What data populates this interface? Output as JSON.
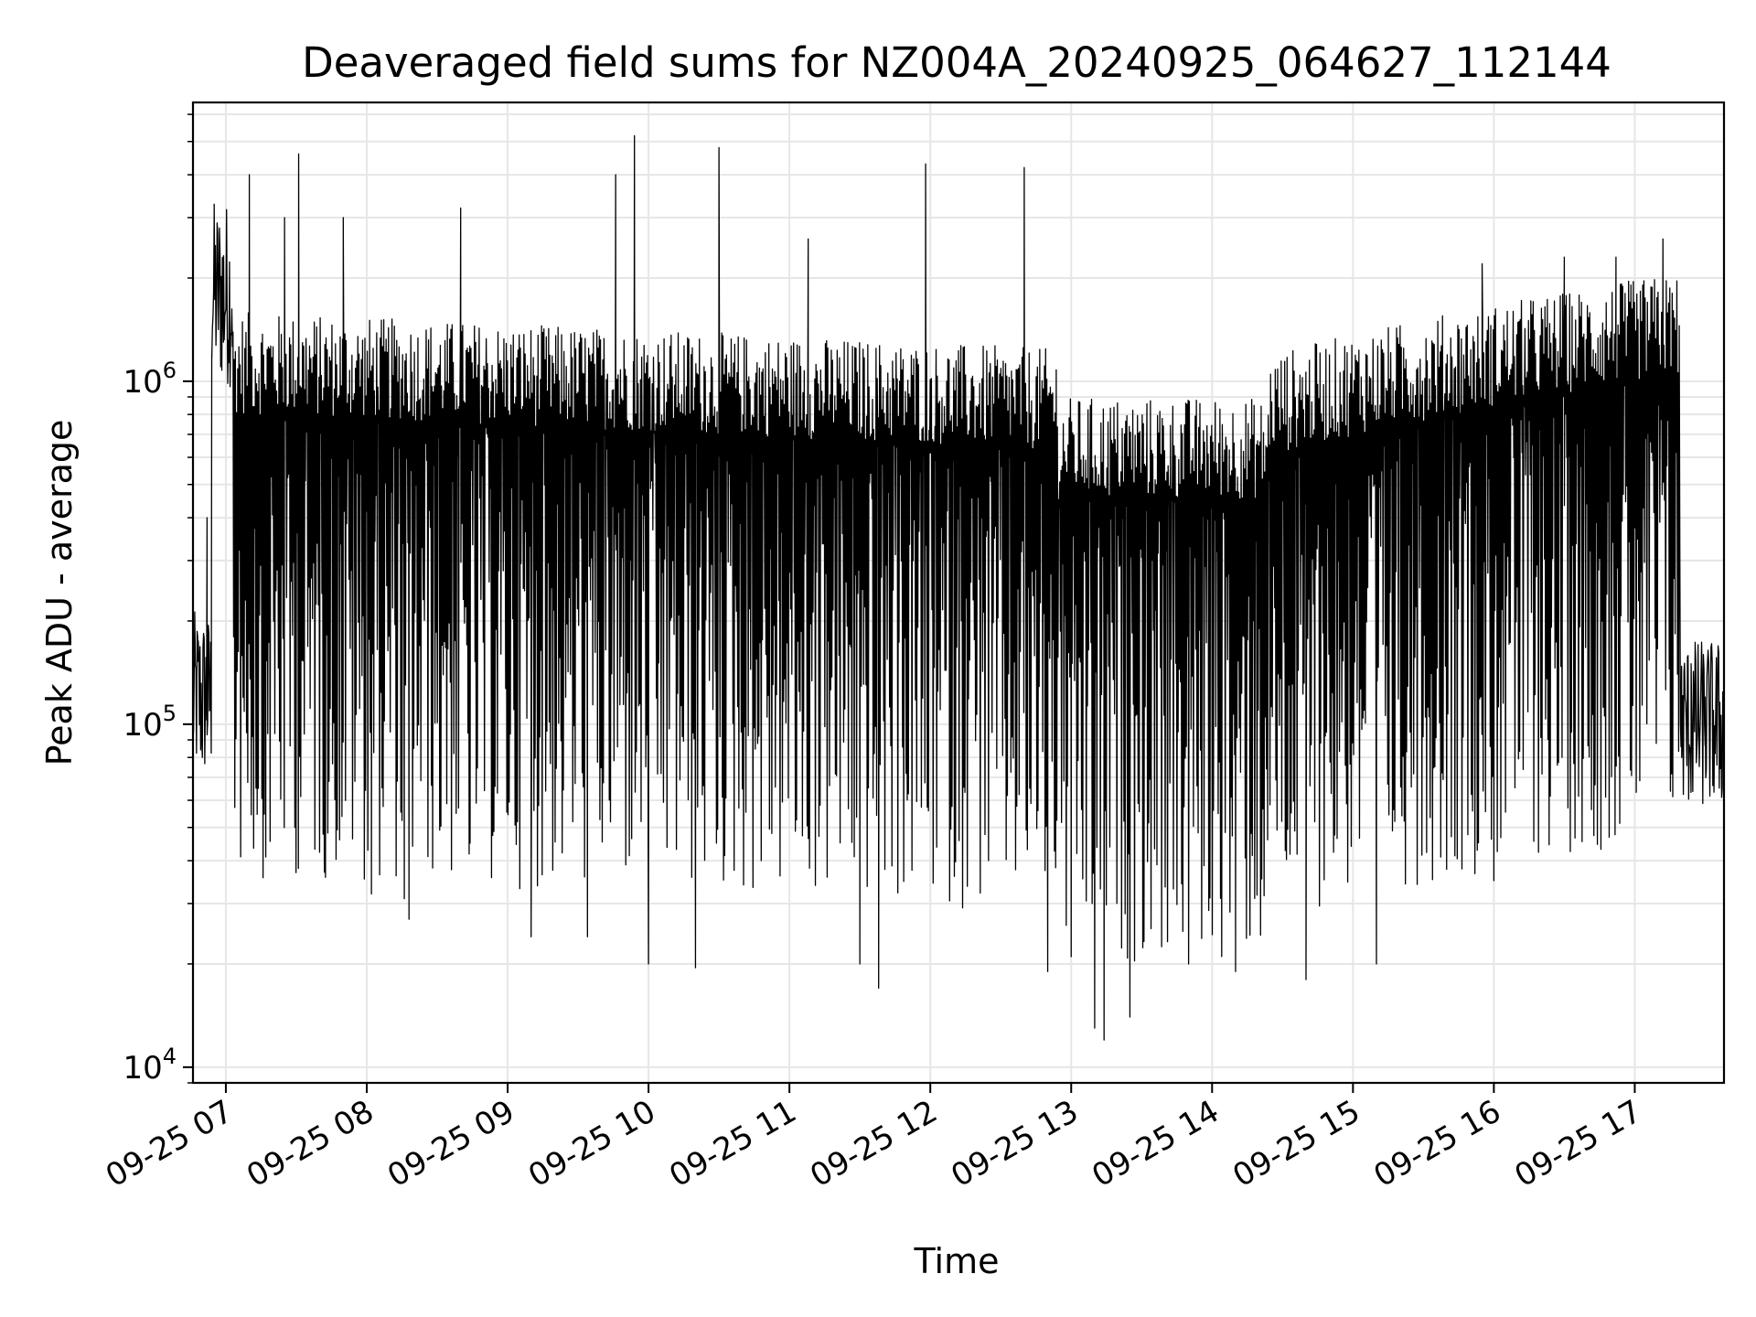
{
  "chart_data": {
    "type": "line",
    "title": "Deaveraged field sums for NZ004A_20240925_064627_112144",
    "xlabel": "Time",
    "ylabel": "Peak ADU - average",
    "yscale": "log",
    "ylim": [
      9000,
      6500000
    ],
    "xlim": [
      "09-25 06:46",
      "09-25 17:38"
    ],
    "grid": true,
    "line_color": "#000000",
    "x_ticks": [
      "09-25 07",
      "09-25 08",
      "09-25 09",
      "09-25 10",
      "09-25 11",
      "09-25 12",
      "09-25 13",
      "09-25 14",
      "09-25 15",
      "09-25 16",
      "09-25 17"
    ],
    "y_ticks": [
      {
        "base": "10",
        "exp": "4",
        "value": 10000
      },
      {
        "base": "10",
        "exp": "5",
        "value": 100000
      },
      {
        "base": "10",
        "exp": "6",
        "value": 1000000
      }
    ],
    "series": [
      {
        "points": [
          [
            "09-25 06:46",
            90000
          ],
          [
            "09-25 06:48",
            180000
          ],
          [
            "09-25 06:50",
            80000
          ],
          [
            "09-25 06:52",
            400000
          ],
          [
            "09-25 06:54",
            1200000
          ],
          [
            "09-25 06:55",
            2900000
          ],
          [
            "09-25 06:57",
            1800000
          ],
          [
            "09-25 06:59",
            1300000
          ],
          [
            "09-25 07:10",
            4000000
          ],
          [
            "09-25 07:17",
            41000
          ],
          [
            "09-25 07:25",
            3000000
          ],
          [
            "09-25 07:31",
            4600000
          ],
          [
            "09-25 07:42",
            37000
          ],
          [
            "09-25 07:50",
            3000000
          ],
          [
            "09-25 08:02",
            32000
          ],
          [
            "09-25 08:16",
            31000
          ],
          [
            "09-25 08:18",
            27000
          ],
          [
            "09-25 08:40",
            3200000
          ],
          [
            "09-25 08:44",
            45000
          ],
          [
            "09-25 09:10",
            24000
          ],
          [
            "09-25 09:34",
            24000
          ],
          [
            "09-25 09:46",
            4000000
          ],
          [
            "09-25 09:54",
            5200000
          ],
          [
            "09-25 10:00",
            20000
          ],
          [
            "09-25 10:20",
            19500
          ],
          [
            "09-25 10:30",
            4800000
          ],
          [
            "09-25 11:08",
            2600000
          ],
          [
            "09-25 11:30",
            20000
          ],
          [
            "09-25 11:38",
            17000
          ],
          [
            "09-25 11:58",
            4300000
          ],
          [
            "09-25 12:40",
            4200000
          ],
          [
            "09-25 12:50",
            19000
          ],
          [
            "09-25 13:00",
            21000
          ],
          [
            "09-25 13:10",
            13000
          ],
          [
            "09-25 13:14",
            12000
          ],
          [
            "09-25 13:25",
            14000
          ],
          [
            "09-25 13:50",
            20000
          ],
          [
            "09-25 14:10",
            19000
          ],
          [
            "09-25 14:40",
            18000
          ],
          [
            "09-25 15:10",
            20000
          ],
          [
            "09-25 15:55",
            2200000
          ],
          [
            "09-25 16:00",
            35000
          ],
          [
            "09-25 16:30",
            2300000
          ],
          [
            "09-25 16:52",
            2300000
          ],
          [
            "09-25 17:12",
            2600000
          ],
          [
            "09-25 17:20",
            80000
          ],
          [
            "09-25 17:24",
            150000
          ],
          [
            "09-25 17:30",
            120000
          ],
          [
            "09-25 17:38",
            70000
          ]
        ]
      }
    ]
  }
}
